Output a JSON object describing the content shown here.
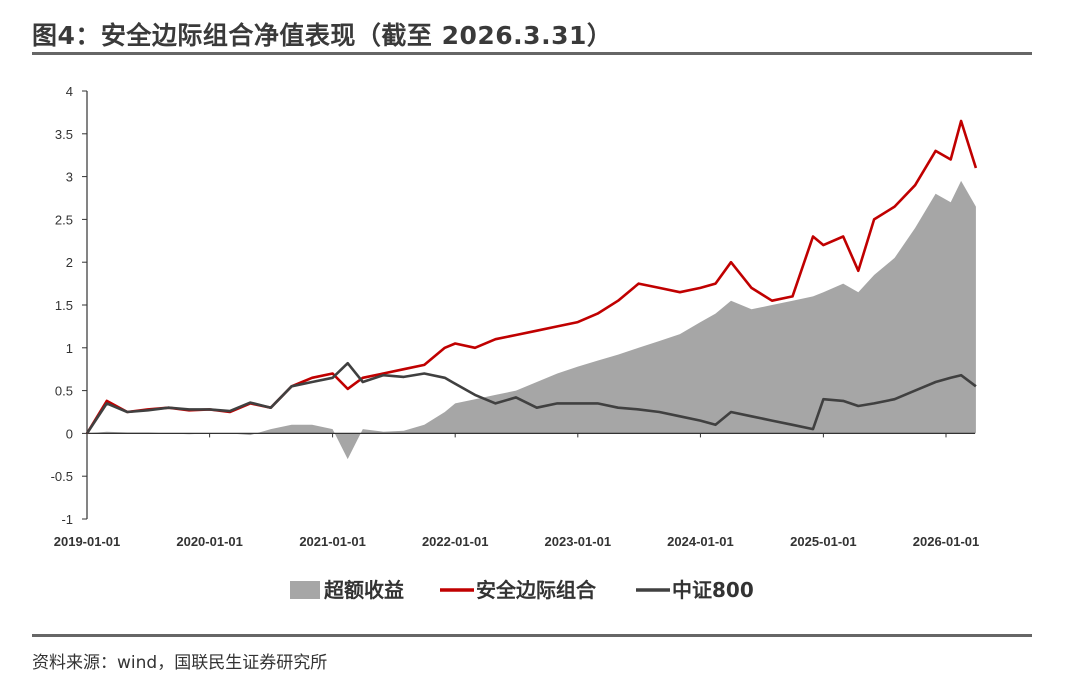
{
  "header": {
    "title": "图4：安全边际组合净值表现（截至 2026.3.31）"
  },
  "footer": {
    "source": "资料来源：wind，国联民生证券研究所"
  },
  "chart_data": {
    "type": "area+line",
    "title": "图4：安全边际组合净值表现（截至 2026.3.31）",
    "xlabel": "",
    "ylabel": "",
    "ylim": [
      -1,
      4
    ],
    "yticks": [
      -1,
      -0.5,
      0,
      0.5,
      1,
      1.5,
      2,
      2.5,
      3,
      3.5,
      4
    ],
    "yticks_labels": [
      "-1",
      "-0.5",
      "0",
      "0.5",
      "1",
      "1.5",
      "2",
      "2.5",
      "3",
      "3.5",
      "4"
    ],
    "xticks": [
      "2019-01-01",
      "2020-01-01",
      "2021-01-01",
      "2022-01-01",
      "2023-01-01",
      "2024-01-01",
      "2025-01-01",
      "2026-01-01"
    ],
    "x_range": [
      "2019-01-01",
      "2026-03-31"
    ],
    "legend_position": "bottom",
    "grid": false,
    "x": [
      "2019-01-01",
      "2019-03-01",
      "2019-05-01",
      "2019-07-01",
      "2019-09-01",
      "2019-11-01",
      "2020-01-01",
      "2020-03-01",
      "2020-05-01",
      "2020-07-01",
      "2020-09-01",
      "2020-11-01",
      "2021-01-01",
      "2021-02-15",
      "2021-04-01",
      "2021-06-01",
      "2021-08-01",
      "2021-10-01",
      "2021-12-01",
      "2022-01-01",
      "2022-03-01",
      "2022-05-01",
      "2022-07-01",
      "2022-09-01",
      "2022-11-01",
      "2023-01-01",
      "2023-03-01",
      "2023-05-01",
      "2023-07-01",
      "2023-09-01",
      "2023-11-01",
      "2024-01-01",
      "2024-02-15",
      "2024-04-01",
      "2024-06-01",
      "2024-08-01",
      "2024-10-01",
      "2024-12-01",
      "2025-01-01",
      "2025-03-01",
      "2025-04-15",
      "2025-06-01",
      "2025-08-01",
      "2025-10-01",
      "2025-12-01",
      "2026-01-15",
      "2026-02-15",
      "2026-03-31"
    ],
    "series": [
      {
        "name": "超额收益",
        "type": "area",
        "color": "#a6a6a6",
        "values": [
          0,
          0.02,
          0.01,
          0.01,
          0,
          -0.01,
          0,
          0,
          -0.02,
          0.05,
          0.1,
          0.1,
          0.05,
          -0.3,
          0.05,
          0.02,
          0.03,
          0.1,
          0.25,
          0.35,
          0.4,
          0.45,
          0.5,
          0.6,
          0.7,
          0.78,
          0.85,
          0.92,
          1.0,
          1.08,
          1.16,
          1.3,
          1.4,
          1.55,
          1.45,
          1.5,
          1.55,
          1.6,
          1.65,
          1.75,
          1.65,
          1.85,
          2.05,
          2.4,
          2.8,
          2.7,
          2.95,
          2.65
        ]
      },
      {
        "name": "安全边际组合",
        "type": "line",
        "color": "#c00000",
        "values": [
          0,
          0.38,
          0.25,
          0.28,
          0.3,
          0.27,
          0.28,
          0.25,
          0.35,
          0.3,
          0.55,
          0.65,
          0.7,
          0.52,
          0.65,
          0.7,
          0.75,
          0.8,
          1.0,
          1.05,
          1.0,
          1.1,
          1.15,
          1.2,
          1.25,
          1.3,
          1.4,
          1.55,
          1.75,
          1.7,
          1.65,
          1.7,
          1.75,
          2.0,
          1.7,
          1.55,
          1.6,
          2.3,
          2.2,
          2.3,
          1.9,
          2.5,
          2.65,
          2.9,
          3.3,
          3.2,
          3.65,
          3.1
        ]
      },
      {
        "name": "中证800",
        "type": "line",
        "color": "#404040",
        "values": [
          0,
          0.35,
          0.25,
          0.27,
          0.3,
          0.28,
          0.28,
          0.26,
          0.36,
          0.3,
          0.55,
          0.6,
          0.65,
          0.82,
          0.6,
          0.68,
          0.66,
          0.7,
          0.65,
          0.58,
          0.45,
          0.35,
          0.42,
          0.3,
          0.35,
          0.35,
          0.35,
          0.3,
          0.28,
          0.25,
          0.2,
          0.15,
          0.1,
          0.25,
          0.2,
          0.15,
          0.1,
          0.05,
          0.4,
          0.38,
          0.32,
          0.35,
          0.4,
          0.5,
          0.6,
          0.65,
          0.68,
          0.55
        ]
      }
    ]
  }
}
